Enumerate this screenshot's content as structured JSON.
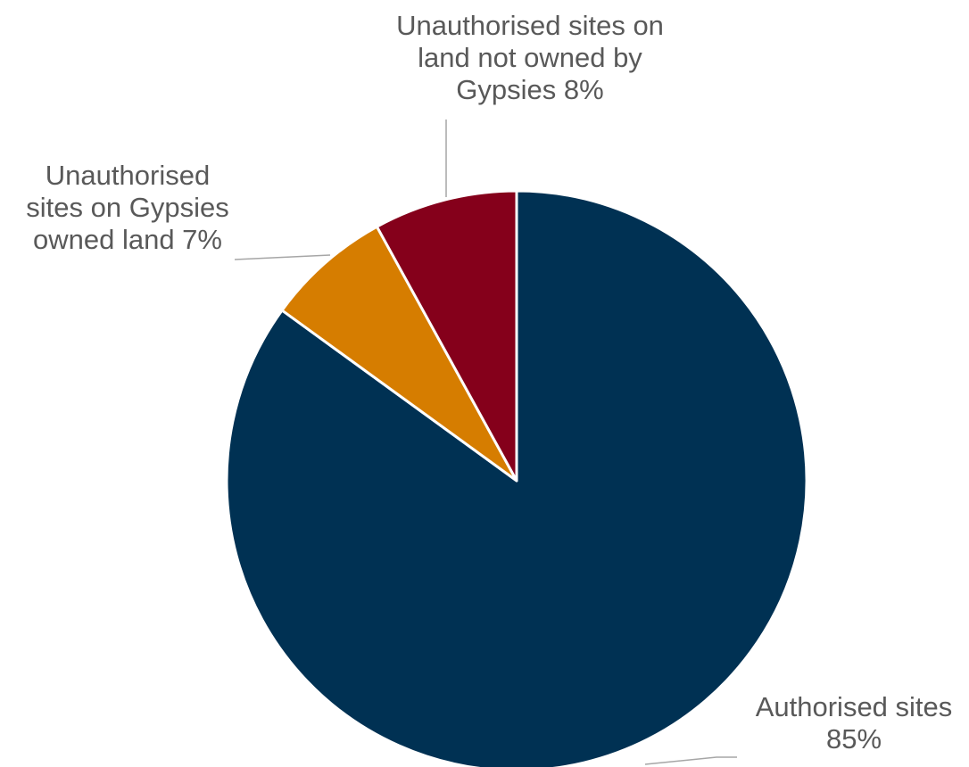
{
  "chart_data": {
    "type": "pie",
    "title": "",
    "start_angle_deg": 0,
    "direction": "clockwise",
    "slices": [
      {
        "label_lines": [
          "Authorised sites",
          "85%"
        ],
        "value": 85,
        "color": "#003153"
      },
      {
        "label_lines": [
          "Unauthorised",
          "sites on Gypsies",
          "owned land 7%"
        ],
        "value": 7,
        "color": "#d67d00"
      },
      {
        "label_lines": [
          "Unauthorised sites on",
          "land not owned by",
          "Gypsies 8%"
        ],
        "value": 8,
        "color": "#85001b"
      }
    ]
  }
}
